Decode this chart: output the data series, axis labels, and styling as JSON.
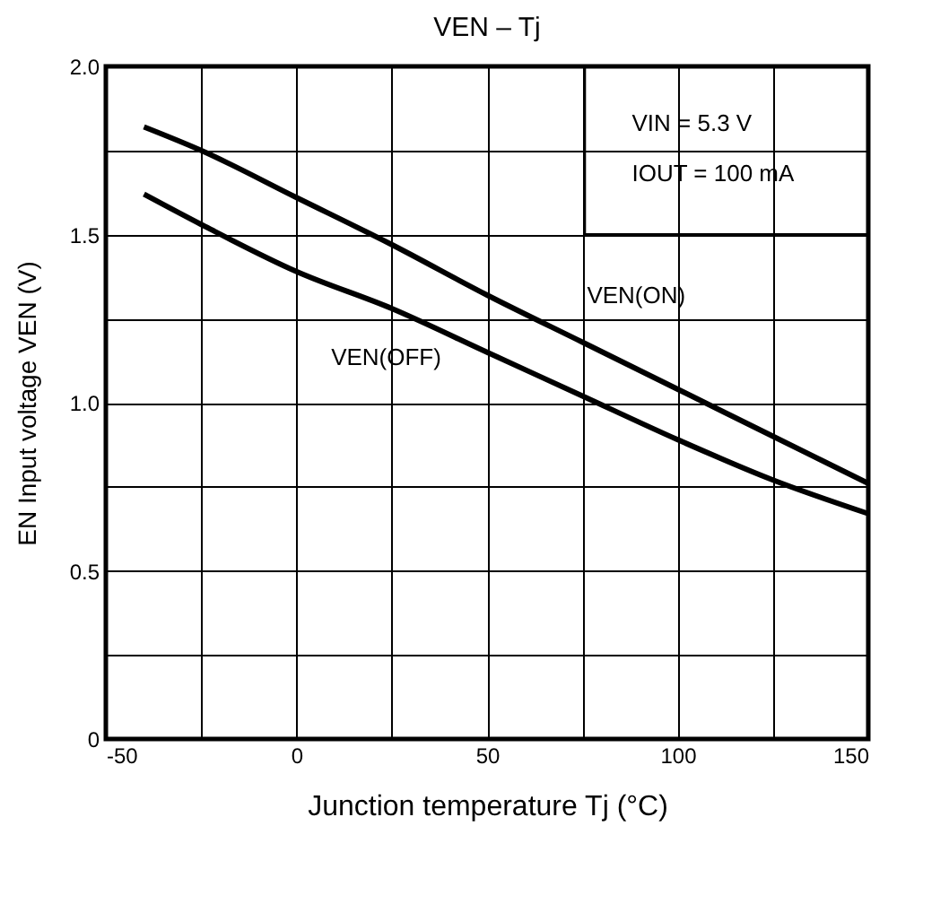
{
  "chart_data": {
    "type": "line",
    "title": "VEN – Tj",
    "xlabel": "Junction temperature    Tj    (°C)",
    "ylabel": "EN Input voltage    VEN    (V)",
    "x": [
      -40,
      -25,
      0,
      25,
      50,
      75,
      100,
      125,
      150
    ],
    "series": [
      {
        "name": "VEN(ON)",
        "color": "#000000",
        "values": [
          1.82,
          1.75,
          1.61,
          1.47,
          1.32,
          1.18,
          1.04,
          0.9,
          0.76
        ]
      },
      {
        "name": "VEN(OFF)",
        "color": "#000000",
        "values": [
          1.62,
          1.53,
          1.39,
          1.28,
          1.15,
          1.02,
          0.89,
          0.77,
          0.67
        ]
      }
    ],
    "xlim": [
      -50,
      150
    ],
    "xticks": [
      -50,
      {
        "value": -25,
        "label": null
      },
      0,
      {
        "value": 25,
        "label": null
      },
      50,
      {
        "value": 75,
        "label": null
      },
      100,
      {
        "value": 125,
        "label": null
      },
      150
    ],
    "ylim": [
      0,
      2.0
    ],
    "yticks": [
      0,
      {
        "value": 0.25,
        "label": null
      },
      {
        "value": 0.5,
        "label": "0.5"
      },
      {
        "value": 0.75,
        "label": null
      },
      {
        "value": 1.0,
        "label": "1.0"
      },
      {
        "value": 1.25,
        "label": null
      },
      {
        "value": 1.5,
        "label": "1.5"
      },
      {
        "value": 1.75,
        "label": null
      },
      {
        "value": 2.0,
        "label": "2.0"
      }
    ],
    "grid": true,
    "legend": false,
    "marker": "none",
    "line_style": "solid",
    "annotations": [
      "VIN = 5.3 V",
      "IOUT = 100 mA"
    ]
  }
}
